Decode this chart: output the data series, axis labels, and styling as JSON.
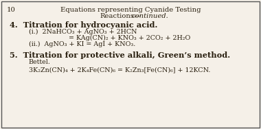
{
  "background_color": "#f5f0e8",
  "border_color": "#555555",
  "page_num": "10",
  "title_line1": "Equations representing Cyanide Testing",
  "title_line2_normal": "Reactions—",
  "title_line2_italic": "continued.",
  "section4_heading": "4.  Titration for hydrocyanic acid.",
  "eq_i_line1": "(i.)  2NaHCO₃ + AgNO₃ + 2HCN",
  "eq_i_line2": "= KAg(CN)₂ + KNO₃ + 2CO₂ + 2H₂O",
  "eq_ii": "(ii.)  AgNO₃ + KI = AgI + KNO₃.",
  "section5_heading": "5.  Titration for protective alkali, Green’s method.",
  "bettel_label": "Bettel.",
  "eq5": "3K₂Zn(CN)₄ + 2K₄Fe(CN)₆ = K₂Zn₃[Fe(CN)₆] + 12KCN.",
  "text_color": "#2a2010",
  "font_size_title": 7.2,
  "font_size_page": 7.2,
  "font_size_heading": 8.2,
  "font_size_eq": 6.8,
  "font_size_bettel": 6.8
}
